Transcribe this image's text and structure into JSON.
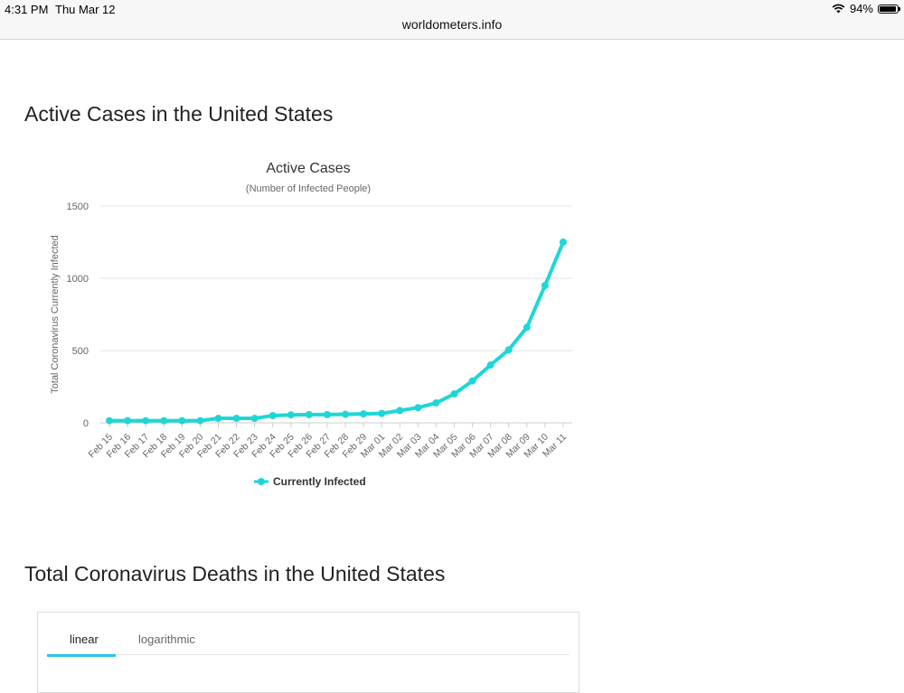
{
  "status_bar": {
    "time": "4:31 PM",
    "date": "Thu Mar 12",
    "url": "worldometers.info",
    "battery": "94%",
    "battery_level": 0.94
  },
  "sections": {
    "active_title": "Active Cases in the United States",
    "deaths_title": "Total Coronavirus Deaths in the United States"
  },
  "deaths_tabs": {
    "linear": "linear",
    "logarithmic": "logarithmic",
    "selected": "linear"
  },
  "colors": {
    "series": "#1fd6d6",
    "tab_accent": "#2ec3e8"
  },
  "chart_data": {
    "type": "line",
    "title": "Active Cases",
    "subtitle": "(Number of Infected People)",
    "ylabel": "Total Coronavirus Currently Infected",
    "xlabel": "",
    "ylim": [
      0,
      1500
    ],
    "yticks": [
      0,
      500,
      1000,
      1500
    ],
    "grid": true,
    "legend_position": "bottom",
    "categories": [
      "Feb 15",
      "Feb 16",
      "Feb 17",
      "Feb 18",
      "Feb 19",
      "Feb 20",
      "Feb 21",
      "Feb 22",
      "Feb 23",
      "Feb 24",
      "Feb 25",
      "Feb 26",
      "Feb 27",
      "Feb 28",
      "Feb 29",
      "Mar 01",
      "Mar 02",
      "Mar 03",
      "Mar 04",
      "Mar 05",
      "Mar 06",
      "Mar 07",
      "Mar 08",
      "Mar 09",
      "Mar 10",
      "Mar 11"
    ],
    "series": [
      {
        "name": "Currently Infected",
        "values": [
          15,
          15,
          15,
          15,
          15,
          15,
          31,
          31,
          31,
          50,
          55,
          57,
          57,
          59,
          62,
          65,
          85,
          105,
          138,
          200,
          290,
          400,
          505,
          660,
          950,
          1250
        ]
      }
    ]
  }
}
